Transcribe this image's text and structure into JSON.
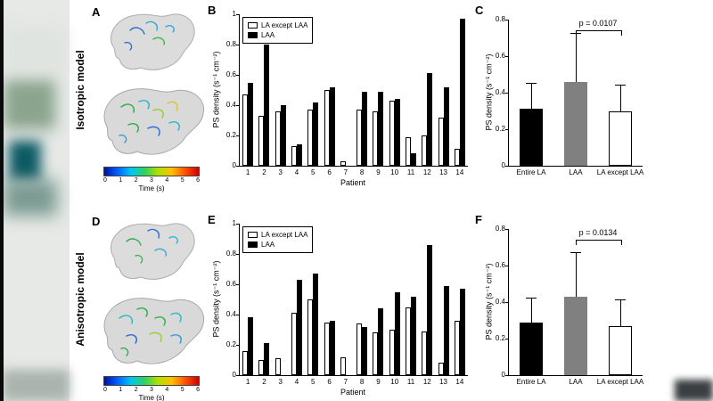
{
  "figure": {
    "panels": [
      "A",
      "B",
      "C",
      "D",
      "E",
      "F"
    ],
    "row_labels": [
      "Isotropic model",
      "Anisotropic model"
    ],
    "colorbar": {
      "label": "Time (s)",
      "ticks": [
        "0",
        "1",
        "2",
        "3",
        "4",
        "5",
        "6"
      ]
    }
  },
  "chart_data": [
    {
      "panel": "B",
      "type": "grouped-bar",
      "xlabel": "Patient",
      "ylabel": "PS density (s⁻¹ cm⁻²)",
      "ylim": [
        0,
        1
      ],
      "yticks": [
        0,
        0.2,
        0.4,
        0.6,
        0.8,
        1
      ],
      "categories": [
        "1",
        "2",
        "3",
        "4",
        "5",
        "6",
        "7",
        "8",
        "9",
        "10",
        "11",
        "12",
        "13",
        "14"
      ],
      "series": [
        {
          "name": "LA except LAA",
          "color": "#ffffff",
          "values": [
            0.47,
            0.33,
            0.36,
            0.13,
            0.37,
            0.5,
            0.03,
            0.37,
            0.36,
            0.43,
            0.19,
            0.2,
            0.32,
            0.11
          ]
        },
        {
          "name": "LAA",
          "color": "#000000",
          "values": [
            0.55,
            0.8,
            0.4,
            0.14,
            0.42,
            0.52,
            0.0,
            0.49,
            0.49,
            0.44,
            0.08,
            0.61,
            0.52,
            0.97
          ]
        }
      ],
      "legend_position": "top-left",
      "grid": false
    },
    {
      "panel": "C",
      "type": "bar-error",
      "ylabel": "PS density (s⁻¹ cm⁻²)",
      "ylim": [
        0,
        0.8
      ],
      "yticks": [
        0,
        0.2,
        0.4,
        0.6,
        0.8
      ],
      "categories": [
        "Entire LA",
        "LAA",
        "LA except LAA"
      ],
      "values": [
        0.31,
        0.46,
        0.3
      ],
      "errors": [
        0.14,
        0.26,
        0.14
      ],
      "colors": [
        "#000000",
        "#808080",
        "#ffffff"
      ],
      "p_label": "p = 0.0107",
      "bracket": [
        1,
        2
      ],
      "grid": false
    },
    {
      "panel": "E",
      "type": "grouped-bar",
      "xlabel": "Patient",
      "ylabel": "PS density (s⁻¹ cm⁻²)",
      "ylim": [
        0,
        1
      ],
      "yticks": [
        0,
        0.2,
        0.4,
        0.6,
        0.8,
        1
      ],
      "categories": [
        "1",
        "2",
        "3",
        "4",
        "5",
        "6",
        "7",
        "8",
        "9",
        "10",
        "11",
        "12",
        "13",
        "14"
      ],
      "series": [
        {
          "name": "LA except LAA",
          "color": "#ffffff",
          "values": [
            0.16,
            0.1,
            0.11,
            0.41,
            0.5,
            0.35,
            0.12,
            0.34,
            0.28,
            0.3,
            0.45,
            0.29,
            0.08,
            0.36
          ]
        },
        {
          "name": "LAA",
          "color": "#000000",
          "values": [
            0.38,
            0.21,
            0.0,
            0.63,
            0.67,
            0.36,
            0.0,
            0.32,
            0.44,
            0.55,
            0.52,
            0.86,
            0.59,
            0.57
          ]
        }
      ],
      "legend_position": "top-left",
      "grid": false
    },
    {
      "panel": "F",
      "type": "bar-error",
      "ylabel": "PS density (s⁻¹ cm⁻²)",
      "ylim": [
        0,
        0.8
      ],
      "yticks": [
        0,
        0.2,
        0.4,
        0.6,
        0.8
      ],
      "categories": [
        "Entire LA",
        "LAA",
        "LA except LAA"
      ],
      "values": [
        0.29,
        0.43,
        0.27
      ],
      "errors": [
        0.13,
        0.24,
        0.14
      ],
      "colors": [
        "#000000",
        "#808080",
        "#ffffff"
      ],
      "p_label": "p = 0.0134",
      "bracket": [
        1,
        2
      ],
      "grid": false
    }
  ]
}
